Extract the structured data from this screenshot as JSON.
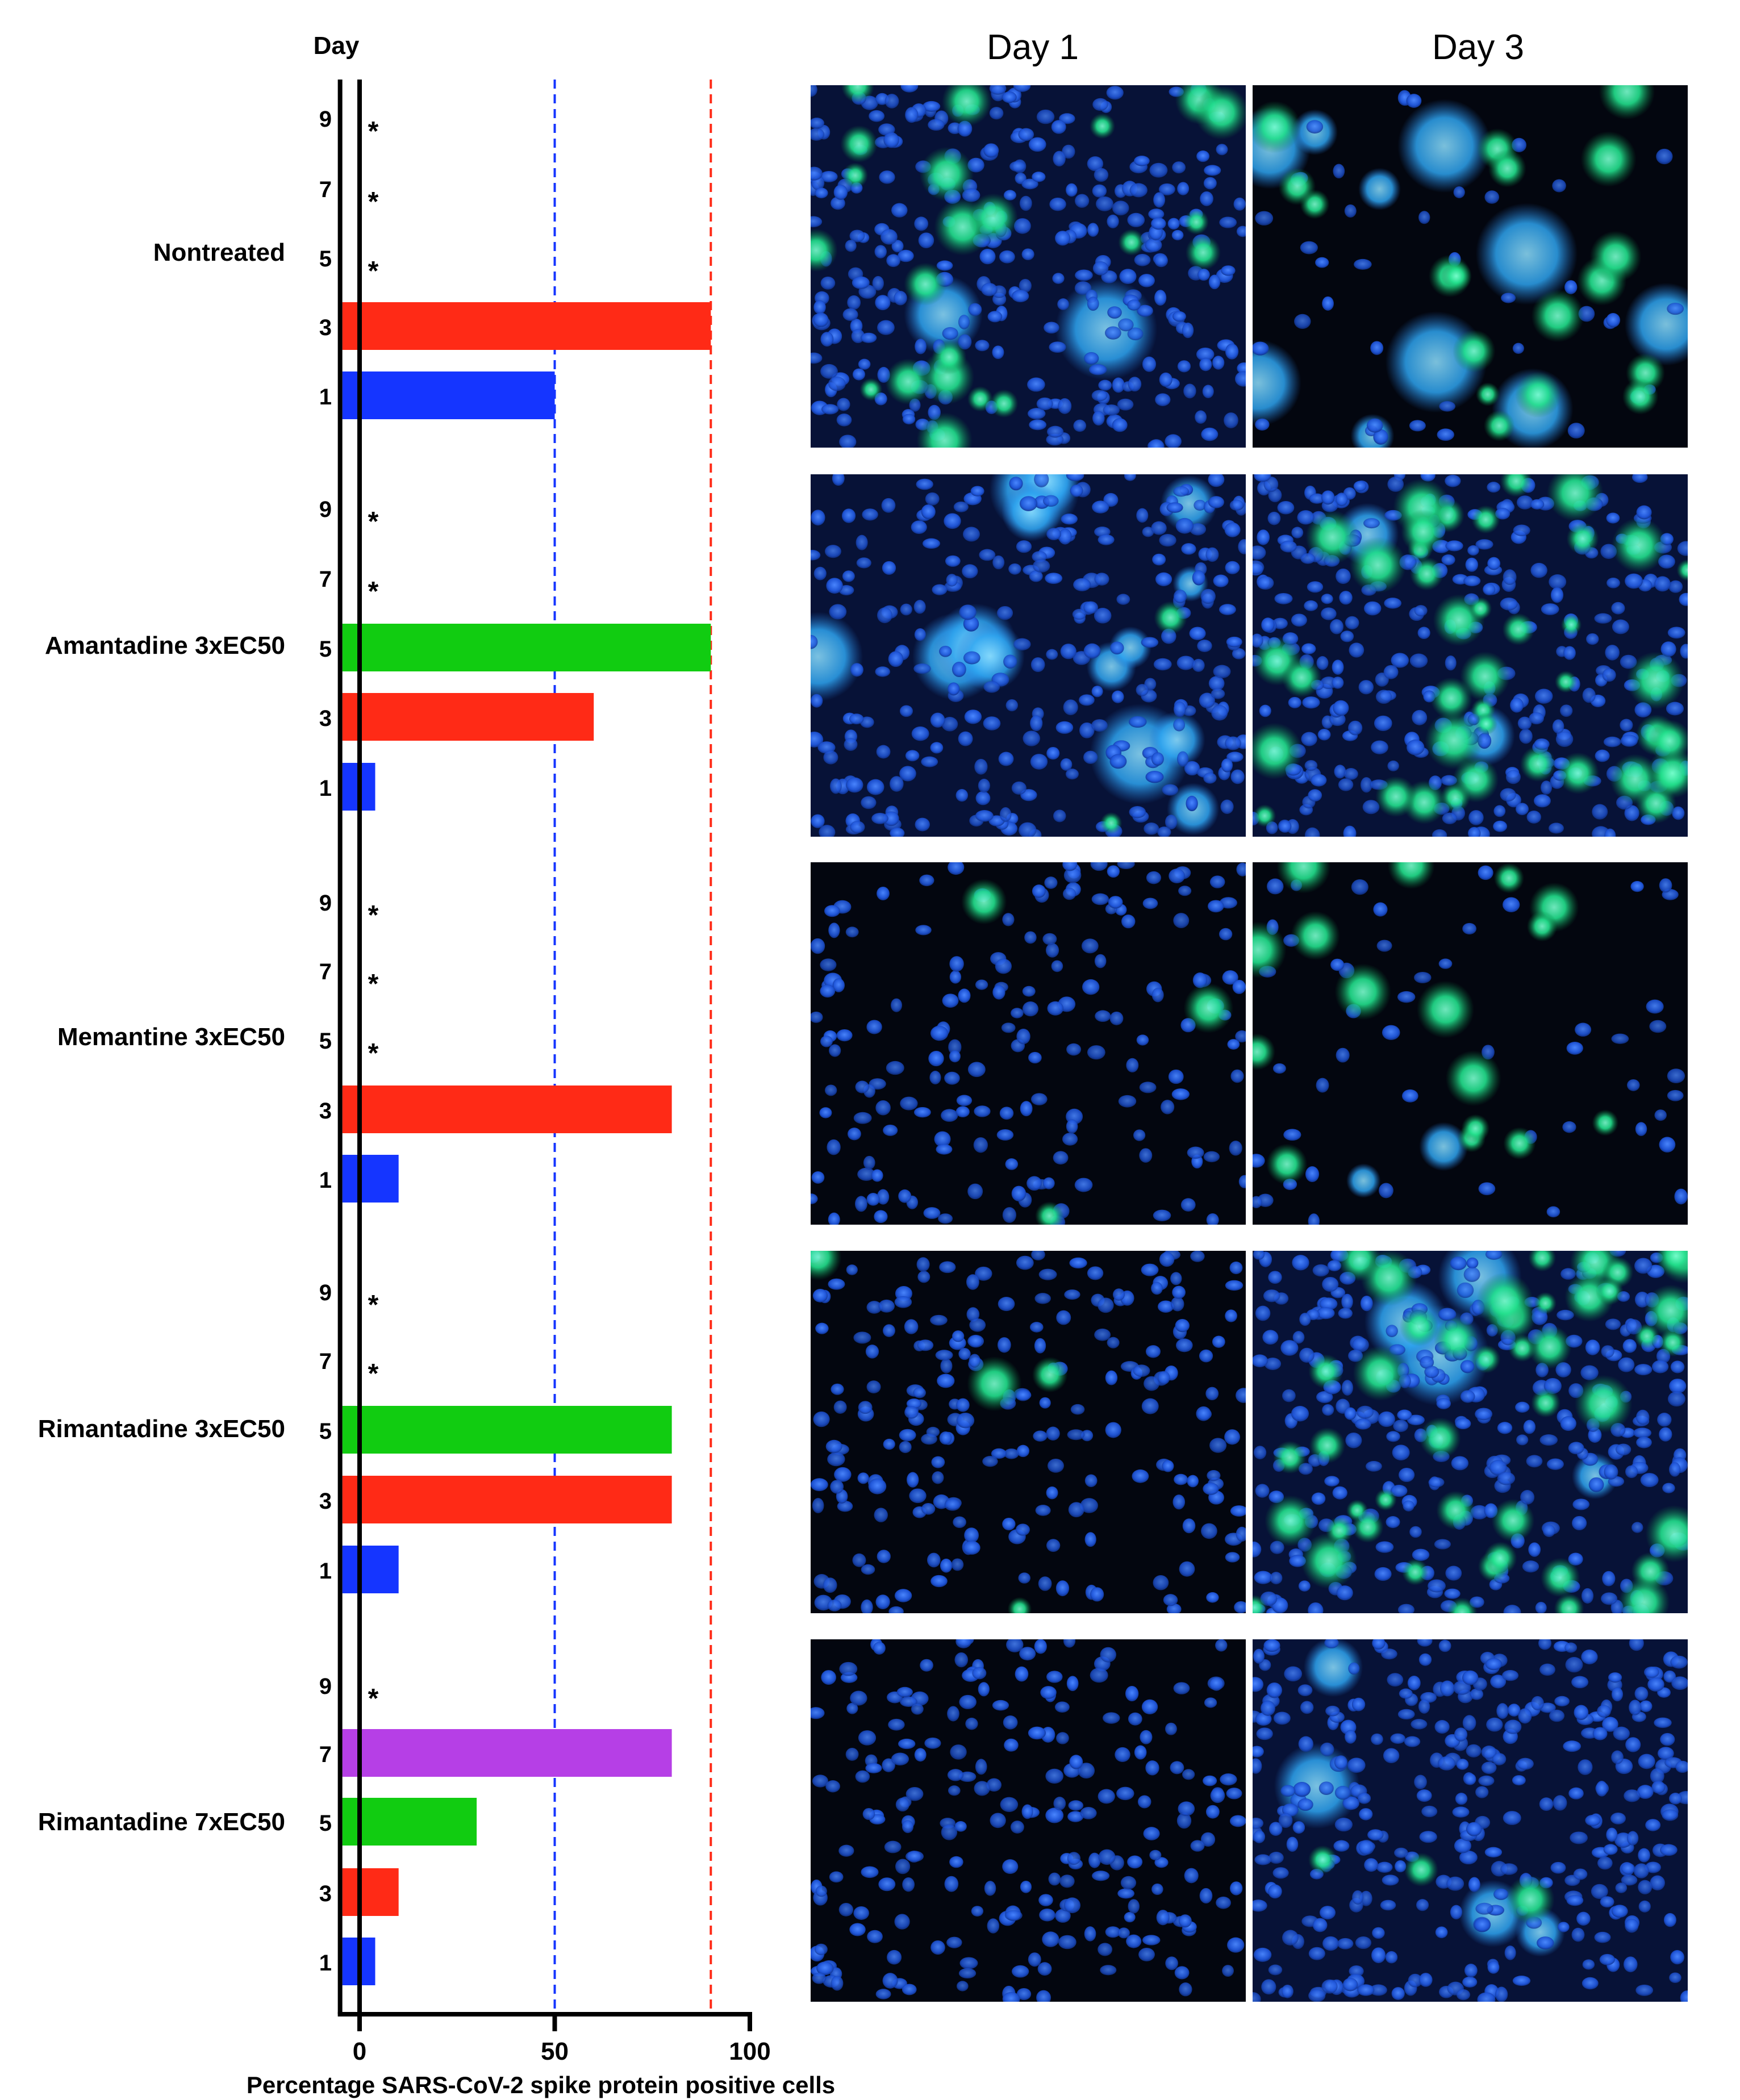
{
  "chart_data": {
    "type": "bar",
    "orientation": "horizontal",
    "xlabel": "Percentage SARS-CoV-2 spike protein positive cells",
    "ylabel": "Day",
    "xlim": [
      -5,
      100
    ],
    "xticks": [
      0,
      50,
      100
    ],
    "reference_lines": [
      {
        "x": 50,
        "color": "#1535ff",
        "style": "dashed"
      },
      {
        "x": 90,
        "color": "#ff2a16",
        "style": "dashed"
      }
    ],
    "day_colors": {
      "1": "#1535ff",
      "3": "#ff2a16",
      "5": "#11cc11",
      "7": "#b63fe6",
      "9": "#b63fe6"
    },
    "days": [
      "1",
      "3",
      "5",
      "7",
      "9"
    ],
    "marker": "*",
    "groups": [
      {
        "name": "Nontreated",
        "values": [
          50,
          90,
          null,
          null,
          null
        ],
        "asterisk": [
          false,
          false,
          true,
          true,
          true
        ]
      },
      {
        "name": "Amantadine 3xEC50",
        "values": [
          4,
          60,
          90,
          null,
          null
        ],
        "asterisk": [
          false,
          false,
          false,
          true,
          true
        ]
      },
      {
        "name": "Memantine 3xEC50",
        "values": [
          10,
          80,
          null,
          null,
          null
        ],
        "asterisk": [
          false,
          false,
          true,
          true,
          true
        ]
      },
      {
        "name": "Rimantadine 3xEC50",
        "values": [
          10,
          80,
          80,
          null,
          null
        ],
        "asterisk": [
          false,
          false,
          false,
          true,
          true
        ]
      },
      {
        "name": "Rimantadine 7xEC50",
        "values": [
          4,
          10,
          30,
          80,
          null
        ],
        "asterisk": [
          false,
          false,
          false,
          false,
          true
        ]
      }
    ]
  },
  "micrographs": {
    "column_titles": [
      "Day 1",
      "Day 3"
    ],
    "rows": [
      {
        "group": "Nontreated",
        "day1": "dense-blue-nuclei-many-green-infected",
        "day3": "dark-field-cytopathic-green-clusters"
      },
      {
        "group": "Amantadine 3xEC50",
        "day1": "blue-nuclei-cyan-patches-few-green",
        "day3": "dense-blue-widespread-green"
      },
      {
        "group": "Memantine 3xEC50",
        "day1": "sparse-blue-nuclei-single-green-cluster",
        "day3": "sparse-cells-green-clusters"
      },
      {
        "group": "Rimantadine 3xEC50",
        "day1": "blue-nuclei-small-green-cluster",
        "day3": "dense-cells-widespread-green"
      },
      {
        "group": "Rimantadine 7xEC50",
        "day1": "blue-nuclei-no-green",
        "day3": "dense-blue-few-green"
      }
    ]
  }
}
